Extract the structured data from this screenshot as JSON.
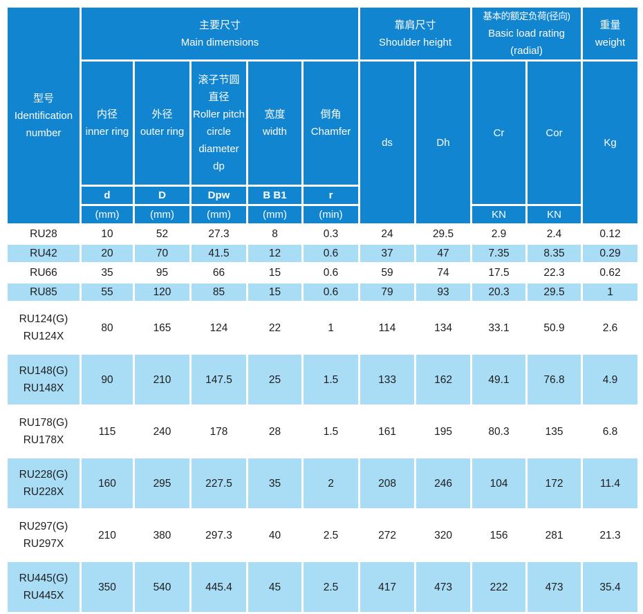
{
  "table": {
    "colors": {
      "header_bg": "#1285d0",
      "alt_row_bg": "#a9dcf5",
      "row_bg": "#ffffff",
      "header_text": "#ffffff",
      "body_text": "#1c1c1c"
    },
    "header": {
      "id_col": {
        "zh": "型号",
        "en": "Identification number"
      },
      "groups": {
        "main": {
          "zh": "主要尺寸",
          "en": "Main dimensions"
        },
        "shoulder": {
          "zh": "靠肩尺寸",
          "en": "Shoulder height"
        },
        "load": {
          "zh": "基本的额定负荷(径向)",
          "en": "Basic load rating (radial)"
        },
        "weight": {
          "zh": "重量",
          "en": "weight"
        }
      },
      "sub": {
        "inner": {
          "zh": "内径",
          "en": "inner ring"
        },
        "outer": {
          "zh": "外径",
          "en": "outer ring"
        },
        "pitch": {
          "zh": "滚子节圆直径",
          "en": "Roller pitch circle diameter dp"
        },
        "width": {
          "zh": "宽度",
          "en": "width"
        },
        "chamfer": {
          "zh": "倒角",
          "en": "Chamfer"
        },
        "ds": "ds",
        "dh": "Dh",
        "cr": "Cr",
        "cor": "Cor",
        "kg": "Kg"
      },
      "symbols": [
        "d",
        "D",
        "Dpw",
        "B B1",
        "r"
      ],
      "units": [
        "(mm)",
        "(mm)",
        "(mm)",
        "(mm)",
        "(min)",
        "KN",
        "KN"
      ]
    },
    "rows": [
      {
        "model": [
          "RU28"
        ],
        "values": [
          "10",
          "52",
          "27.3",
          "8",
          "0.3",
          "24",
          "29.5",
          "2.9",
          "2.4",
          "0.12"
        ]
      },
      {
        "model": [
          "RU42"
        ],
        "values": [
          "20",
          "70",
          "41.5",
          "12",
          "0.6",
          "37",
          "47",
          "7.35",
          "8.35",
          "0.29"
        ]
      },
      {
        "model": [
          "RU66"
        ],
        "values": [
          "35",
          "95",
          "66",
          "15",
          "0.6",
          "59",
          "74",
          "17.5",
          "22.3",
          "0.62"
        ]
      },
      {
        "model": [
          "RU85"
        ],
        "values": [
          "55",
          "120",
          "85",
          "15",
          "0.6",
          "79",
          "93",
          "20.3",
          "29.5",
          "1"
        ]
      },
      {
        "model": [
          "RU124(G)",
          "RU124X"
        ],
        "values": [
          "80",
          "165",
          "124",
          "22",
          "1",
          "114",
          "134",
          "33.1",
          "50.9",
          "2.6"
        ]
      },
      {
        "model": [
          "RU148(G)",
          "RU148X"
        ],
        "values": [
          "90",
          "210",
          "147.5",
          "25",
          "1.5",
          "133",
          "162",
          "49.1",
          "76.8",
          "4.9"
        ]
      },
      {
        "model": [
          "RU178(G)",
          "RU178X"
        ],
        "values": [
          "115",
          "240",
          "178",
          "28",
          "1.5",
          "161",
          "195",
          "80.3",
          "135",
          "6.8"
        ]
      },
      {
        "model": [
          "RU228(G)",
          "RU228X"
        ],
        "values": [
          "160",
          "295",
          "227.5",
          "35",
          "2",
          "208",
          "246",
          "104",
          "172",
          "11.4"
        ]
      },
      {
        "model": [
          "RU297(G)",
          "RU297X"
        ],
        "values": [
          "210",
          "380",
          "297.3",
          "40",
          "2.5",
          "272",
          "320",
          "156",
          "281",
          "21.3"
        ]
      },
      {
        "model": [
          "RU445(G)",
          "RU445X"
        ],
        "values": [
          "350",
          "540",
          "445.4",
          "45",
          "2.5",
          "417",
          "473",
          "222",
          "473",
          "35.4"
        ]
      }
    ]
  }
}
